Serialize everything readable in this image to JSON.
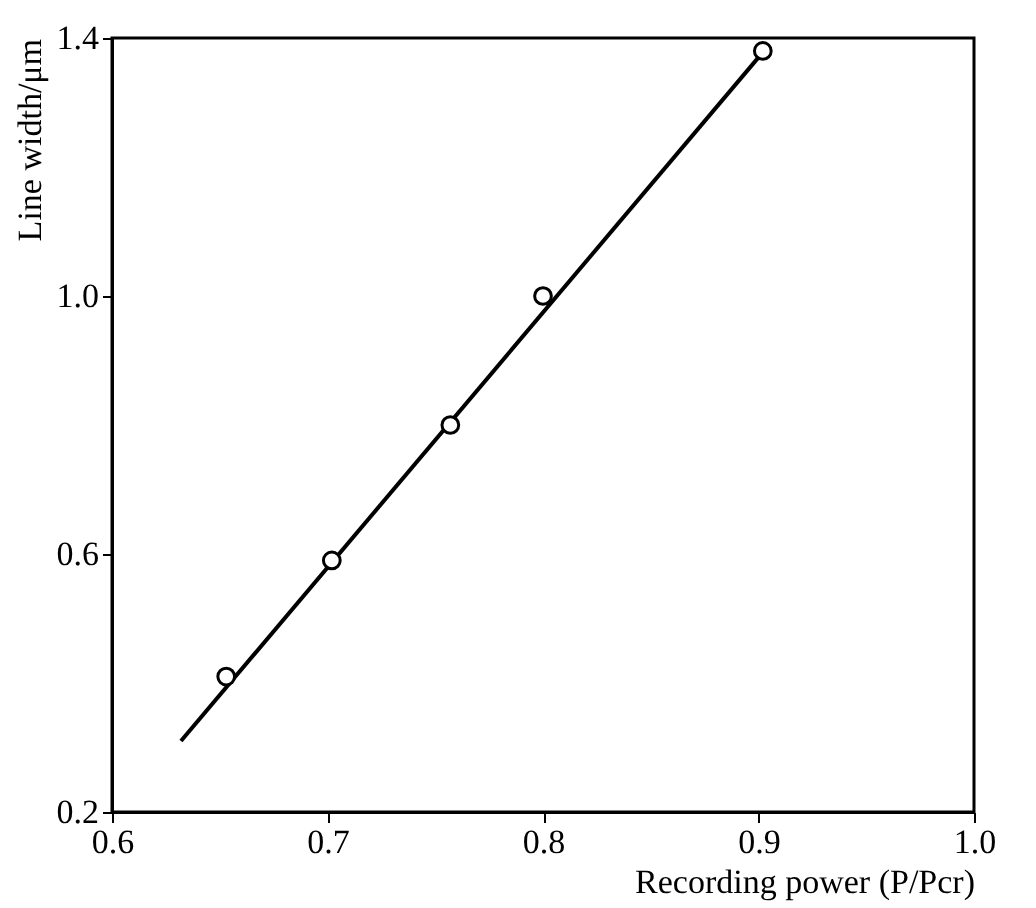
{
  "chart_data": {
    "type": "scatter",
    "xlabel": "Recording power (P/Pcr)",
    "ylabel": "Line width/μm",
    "xlim": [
      0.6,
      1.0
    ],
    "xticks": [
      {
        "value": 0.6,
        "label": "0.6"
      },
      {
        "value": 0.7,
        "label": "0.7"
      },
      {
        "value": 0.8,
        "label": "0.8"
      },
      {
        "value": 0.9,
        "label": "0.9"
      },
      {
        "value": 1.0,
        "label": "1.0"
      }
    ],
    "ylim": [
      0.2,
      1.4
    ],
    "yticks": [
      {
        "value": 0.2,
        "label": "0.2"
      },
      {
        "value": 0.6,
        "label": "0.6"
      },
      {
        "value": 1.0,
        "label": "1.0"
      },
      {
        "value": 1.4,
        "label": "1.4"
      }
    ],
    "grid": false,
    "marker": "circle",
    "series": [
      {
        "color": "#000000",
        "x": [
          0.653,
          0.702,
          0.757,
          0.8,
          0.902
        ],
        "values": [
          0.41,
          0.59,
          0.8,
          1.0,
          1.38
        ]
      },
      {
        "type": "line",
        "color": "#000000",
        "marker": "none",
        "x": [
          0.632,
          0.9
        ],
        "values": [
          0.31,
          1.37
        ]
      }
    ]
  }
}
